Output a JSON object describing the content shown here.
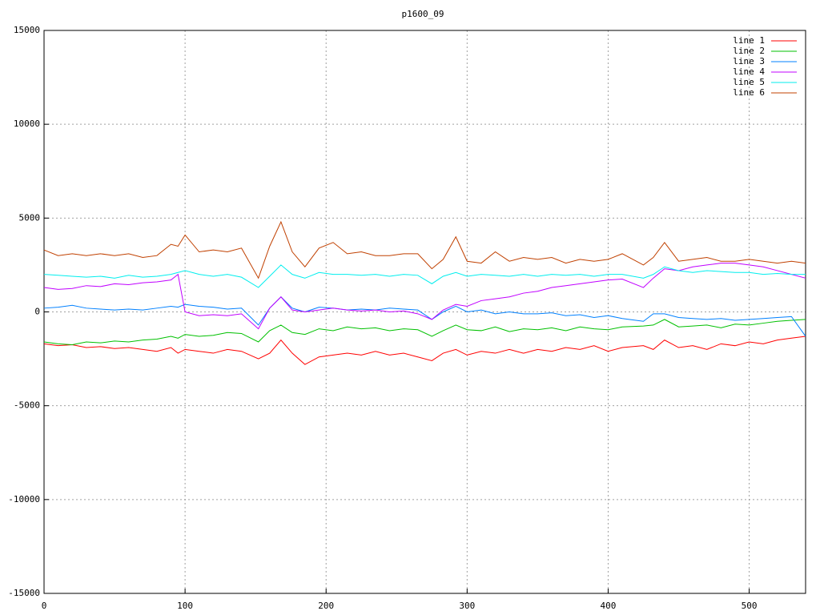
{
  "chart_data": {
    "type": "line",
    "title": "p1600_09",
    "x": [
      0,
      10,
      20,
      30,
      40,
      50,
      60,
      70,
      80,
      90,
      95,
      100,
      110,
      120,
      130,
      140,
      152,
      160,
      168,
      176,
      185,
      195,
      205,
      215,
      225,
      235,
      245,
      255,
      265,
      275,
      283,
      292,
      300,
      310,
      320,
      330,
      340,
      350,
      360,
      370,
      380,
      390,
      400,
      410,
      425,
      432,
      440,
      450,
      460,
      470,
      480,
      490,
      500,
      510,
      520,
      530,
      540
    ],
    "series": [
      {
        "name": "line 1",
        "color": "#ff0000",
        "values": [
          -1700,
          -1800,
          -1750,
          -1900,
          -1850,
          -1950,
          -1900,
          -2000,
          -2100,
          -1900,
          -2200,
          -2000,
          -2100,
          -2200,
          -2000,
          -2100,
          -2500,
          -2200,
          -1500,
          -2200,
          -2800,
          -2400,
          -2300,
          -2200,
          -2300,
          -2100,
          -2300,
          -2200,
          -2400,
          -2600,
          -2200,
          -2000,
          -2300,
          -2100,
          -2200,
          -2000,
          -2200,
          -2000,
          -2100,
          -1900,
          -2000,
          -1800,
          -2100,
          -1900,
          -1800,
          -2000,
          -1500,
          -1900,
          -1800,
          -2000,
          -1700,
          -1800,
          -1600,
          -1700,
          -1500,
          -1400,
          -1300
        ]
      },
      {
        "name": "line 2",
        "color": "#00c000",
        "values": [
          -1600,
          -1700,
          -1750,
          -1600,
          -1650,
          -1550,
          -1600,
          -1500,
          -1450,
          -1300,
          -1400,
          -1200,
          -1300,
          -1250,
          -1100,
          -1150,
          -1600,
          -1000,
          -700,
          -1100,
          -1200,
          -900,
          -1000,
          -800,
          -900,
          -850,
          -1000,
          -900,
          -950,
          -1300,
          -1000,
          -700,
          -950,
          -1000,
          -800,
          -1050,
          -900,
          -950,
          -850,
          -1000,
          -800,
          -900,
          -950,
          -800,
          -750,
          -700,
          -400,
          -800,
          -750,
          -700,
          -850,
          -650,
          -700,
          -600,
          -500,
          -450,
          -400
        ]
      },
      {
        "name": "line 3",
        "color": "#0080ff",
        "values": [
          200,
          250,
          350,
          200,
          150,
          100,
          150,
          100,
          200,
          300,
          250,
          400,
          300,
          250,
          150,
          200,
          -700,
          200,
          800,
          200,
          0,
          250,
          200,
          100,
          150,
          100,
          200,
          150,
          100,
          -400,
          0,
          300,
          0,
          100,
          -100,
          0,
          -100,
          -100,
          -50,
          -200,
          -150,
          -300,
          -200,
          -350,
          -500,
          -100,
          -100,
          -300,
          -350,
          -400,
          -350,
          -450,
          -400,
          -350,
          -300,
          -250,
          -1300
        ]
      },
      {
        "name": "line 4",
        "color": "#c000ff",
        "values": [
          1300,
          1200,
          1250,
          1400,
          1350,
          1500,
          1450,
          1550,
          1600,
          1700,
          2000,
          0,
          -200,
          -150,
          -200,
          -100,
          -900,
          200,
          800,
          100,
          0,
          100,
          200,
          100,
          50,
          100,
          0,
          50,
          -100,
          -400,
          100,
          400,
          300,
          600,
          700,
          800,
          1000,
          1100,
          1300,
          1400,
          1500,
          1600,
          1700,
          1750,
          1300,
          1800,
          2300,
          2200,
          2400,
          2500,
          2600,
          2600,
          2500,
          2400,
          2200,
          2000,
          1800
        ]
      },
      {
        "name": "line 5",
        "color": "#00eeee",
        "values": [
          2000,
          1950,
          1900,
          1850,
          1900,
          1800,
          1950,
          1850,
          1900,
          2000,
          2100,
          2200,
          2000,
          1900,
          2000,
          1850,
          1300,
          1900,
          2500,
          2000,
          1800,
          2100,
          2000,
          2000,
          1950,
          2000,
          1900,
          2000,
          1950,
          1500,
          1900,
          2100,
          1900,
          2000,
          1950,
          1900,
          2000,
          1900,
          2000,
          1950,
          2000,
          1900,
          2000,
          2000,
          1800,
          2000,
          2400,
          2200,
          2100,
          2200,
          2150,
          2100,
          2100,
          2000,
          2050,
          2000,
          2000
        ]
      },
      {
        "name": "line 6",
        "color": "#c04000",
        "values": [
          3300,
          3000,
          3100,
          3000,
          3100,
          3000,
          3100,
          2900,
          3000,
          3600,
          3500,
          4100,
          3200,
          3300,
          3200,
          3400,
          1800,
          3500,
          4800,
          3200,
          2400,
          3400,
          3700,
          3100,
          3200,
          3000,
          3000,
          3100,
          3100,
          2300,
          2800,
          4000,
          2700,
          2600,
          3200,
          2700,
          2900,
          2800,
          2900,
          2600,
          2800,
          2700,
          2800,
          3100,
          2500,
          2900,
          3700,
          2700,
          2800,
          2900,
          2700,
          2700,
          2800,
          2700,
          2600,
          2700,
          2600
        ]
      }
    ],
    "xlim": [
      0,
      540
    ],
    "xticks": [
      0,
      100,
      200,
      300,
      400,
      500
    ],
    "ylim": [
      -15000,
      15000
    ],
    "yticks": [
      -15000,
      -10000,
      -5000,
      0,
      5000,
      10000,
      15000
    ],
    "grid": true,
    "legend": "top-right"
  }
}
